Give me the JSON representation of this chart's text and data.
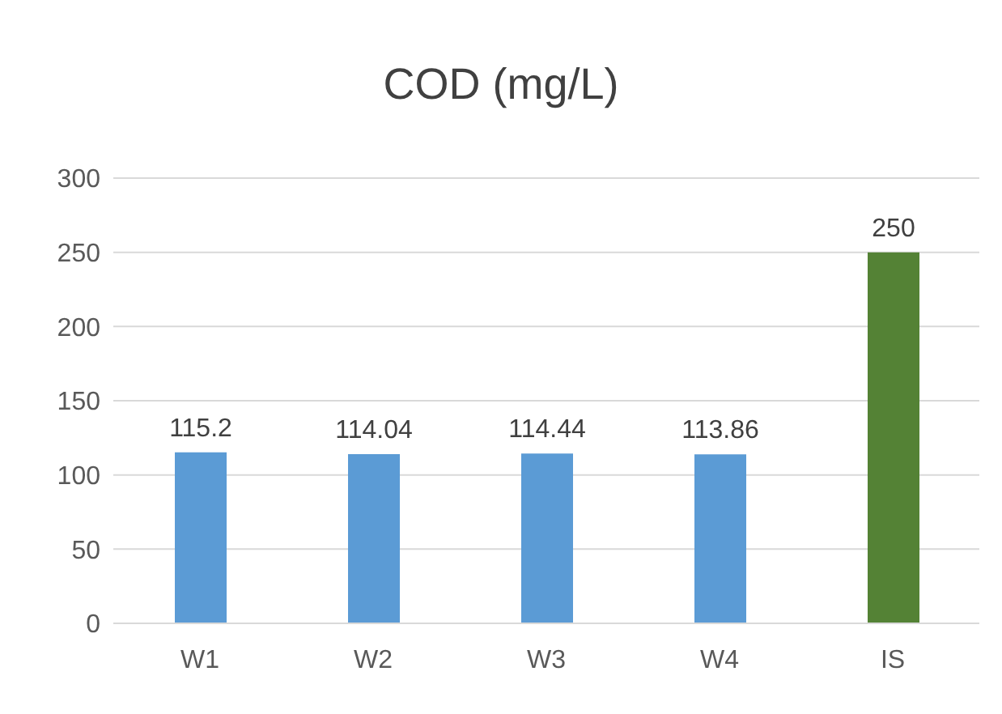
{
  "chart_data": {
    "type": "bar",
    "title": "COD (mg/L)",
    "categories": [
      "W1",
      "W2",
      "W3",
      "W4",
      "IS"
    ],
    "values": [
      115.2,
      114.04,
      114.44,
      113.86,
      250
    ],
    "colors": [
      "#5b9bd5",
      "#5b9bd5",
      "#5b9bd5",
      "#5b9bd5",
      "#548235"
    ],
    "ylim": [
      0,
      300
    ],
    "yticks": [
      0,
      50,
      100,
      150,
      200,
      250,
      300
    ],
    "grid": "y",
    "data_labels": true
  }
}
